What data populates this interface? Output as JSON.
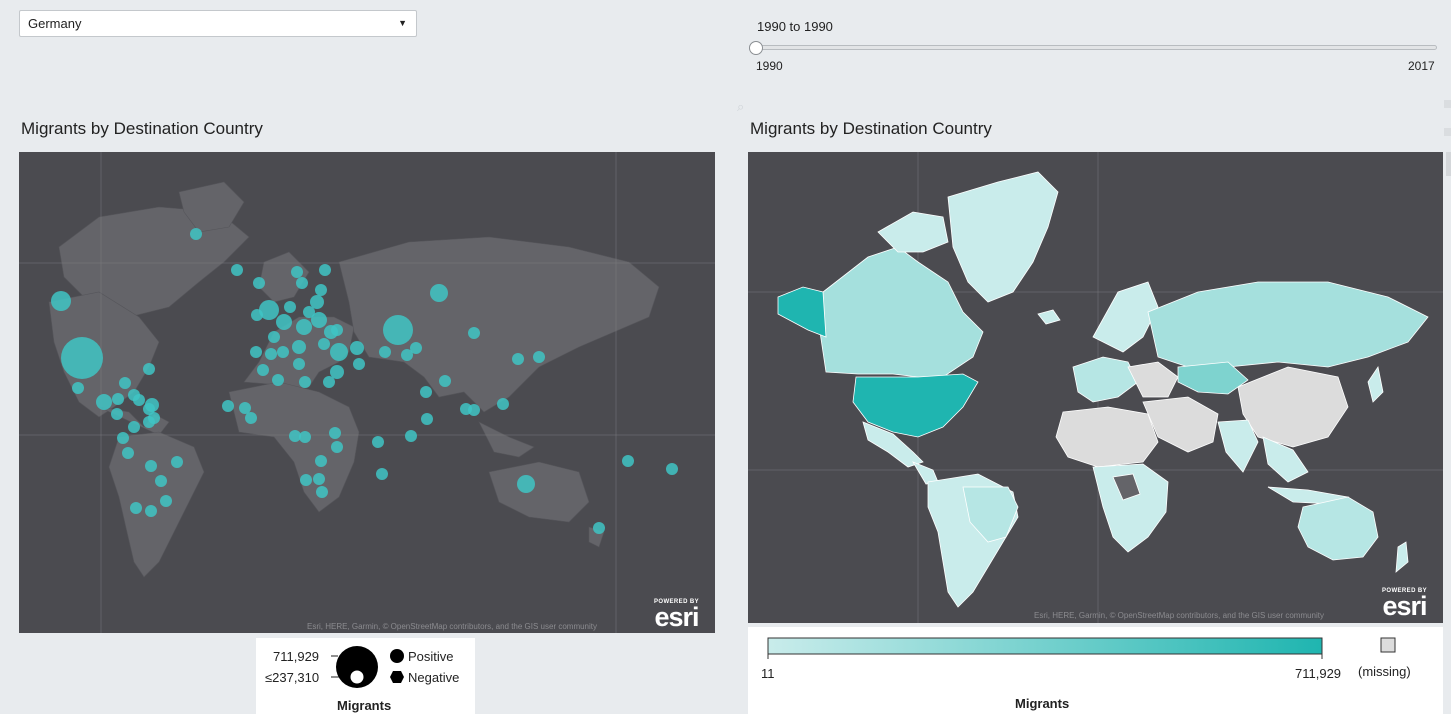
{
  "country_select": {
    "value": "Germany"
  },
  "year_slider": {
    "range_label": "1990 to 1990",
    "min_label": "1990",
    "max_label": "2017",
    "value": 1990,
    "min": 1990,
    "max": 2017
  },
  "left_panel": {
    "title": "Migrants by Destination Country",
    "attribution": "Esri, HERE, Garmin, © OpenStreetMap contributors, and the GIS user community",
    "logo_powered": "POWERED BY",
    "logo_text": "esri",
    "legend": {
      "max_label": "711,929",
      "min_label": "≤237,310",
      "positive": "Positive",
      "negative": "Negative",
      "title": "Migrants"
    }
  },
  "right_panel": {
    "title": "Migrants by Destination Country",
    "attribution": "Esri, HERE, Garmin, © OpenStreetMap contributors, and the GIS user community",
    "logo_powered": "POWERED BY",
    "logo_text": "esri",
    "legend": {
      "min_label": "11",
      "max_label": "711,929",
      "missing_label": "(missing)",
      "title": "Migrants"
    }
  },
  "colors": {
    "accent": "#3fc4c4",
    "map_bg": "#4b4b50",
    "land": "#646469",
    "choropleth_low": "#c9eceb",
    "choropleth_high": "#1fb5b0",
    "missing": "#dcdcdc"
  },
  "icons": [
    "chevron-down-icon",
    "search-icon",
    "esri-logo-icon"
  ]
}
